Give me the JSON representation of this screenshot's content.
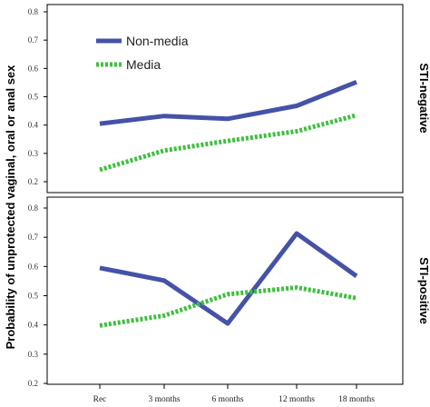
{
  "chart_data": {
    "type": "line",
    "ylabel": "Probability of unprotected vaginal, oral or anal sex",
    "xlabel": "",
    "categories": [
      "Rec",
      "3 months",
      "6 months",
      "12 months",
      "18 months"
    ],
    "legend": {
      "placement": "top-left (upper panel)"
    },
    "grid": false,
    "colors": {
      "Non-media": "#4452a8",
      "Media": "#3fbf3f"
    },
    "panels": [
      {
        "strip_label": "STI-negative",
        "ylim": [
          0.2,
          0.8
        ],
        "yticks": [
          "0.2",
          "0.3",
          "0.4",
          "0.5",
          "0.6",
          "0.7",
          "0.8"
        ],
        "series": [
          {
            "name": "Non-media",
            "values": [
              0.405,
              0.432,
              0.422,
              0.468,
              0.552
            ]
          },
          {
            "name": "Media",
            "values": [
              0.242,
              0.31,
              0.344,
              0.378,
              0.435
            ]
          }
        ]
      },
      {
        "strip_label": "STI-positive",
        "ylim": [
          0.2,
          0.8
        ],
        "yticks": [
          "0.2",
          "0.3",
          "0.4",
          "0.5",
          "0.6",
          "0.7",
          "0.8"
        ],
        "series": [
          {
            "name": "Non-media",
            "values": [
              0.595,
              0.552,
              0.405,
              0.713,
              0.567
            ]
          },
          {
            "name": "Media",
            "values": [
              0.398,
              0.432,
              0.505,
              0.528,
              0.492
            ]
          }
        ]
      }
    ]
  }
}
